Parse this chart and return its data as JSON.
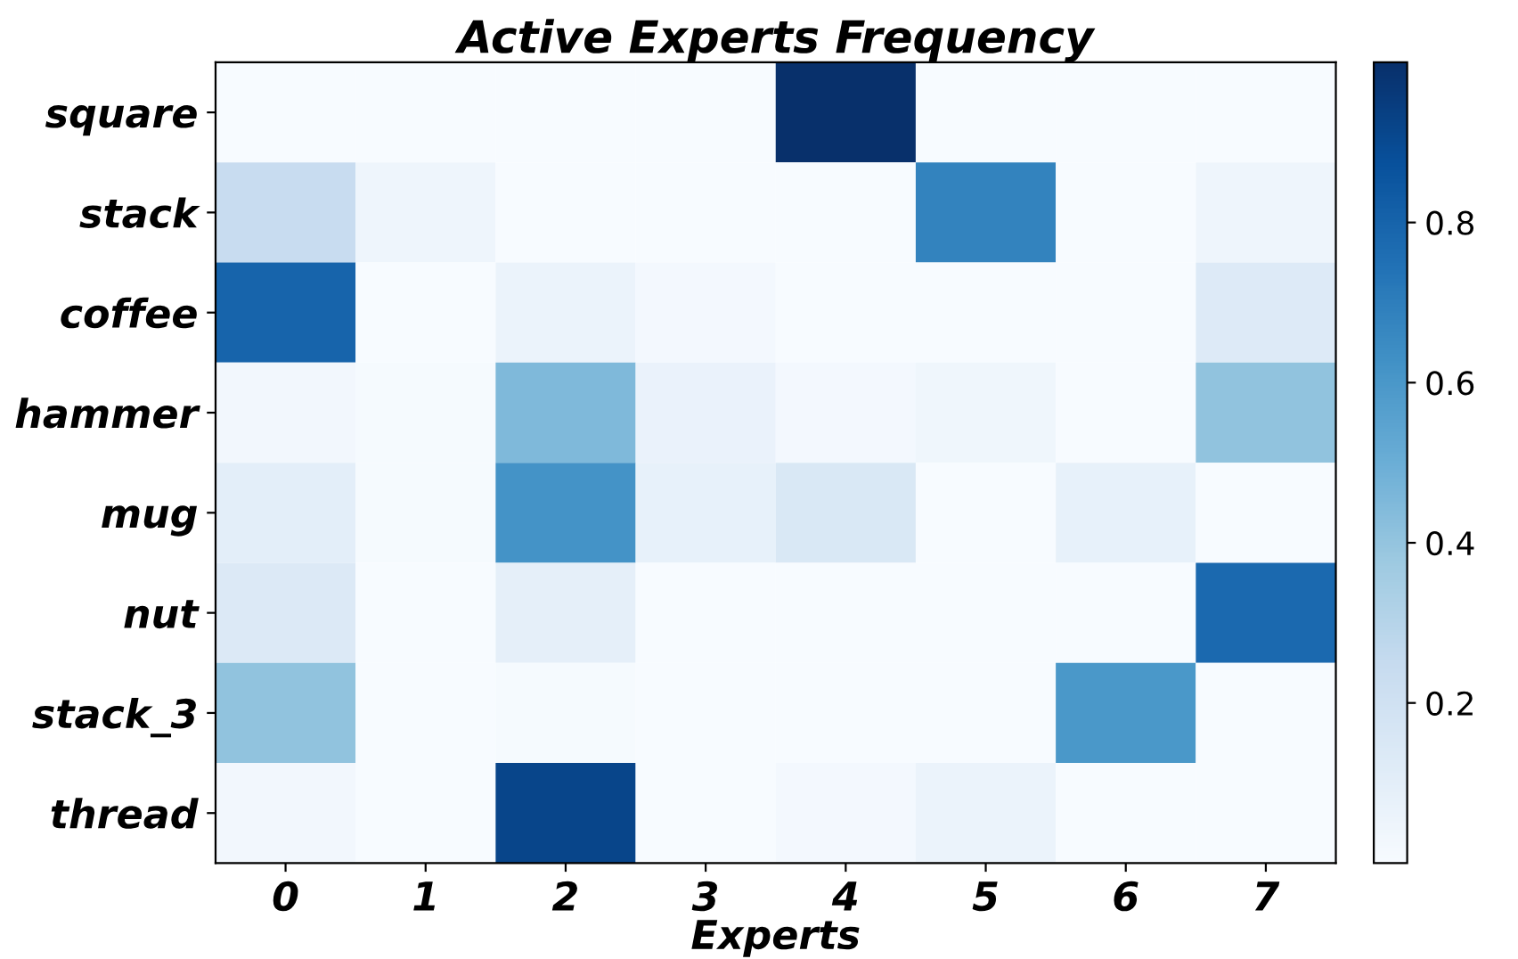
{
  "chart_data": {
    "type": "heatmap",
    "title": "Active Experts Frequency",
    "xlabel": "Experts",
    "categories": [
      "0",
      "1",
      "2",
      "3",
      "4",
      "5",
      "6",
      "7"
    ],
    "y_categories": [
      "square",
      "stack",
      "coffee",
      "hammer",
      "mug",
      "nut",
      "stack_3",
      "thread"
    ],
    "cells": [
      [
        0,
        0,
        0,
        0,
        1.0,
        0,
        0,
        0
      ],
      [
        0.24,
        0.05,
        0,
        0,
        0,
        0.68,
        0,
        0.05
      ],
      [
        0.8,
        0,
        0.06,
        0.02,
        0,
        0,
        0,
        0.13
      ],
      [
        0.03,
        0.01,
        0.45,
        0.07,
        0.02,
        0.04,
        0,
        0.41
      ],
      [
        0.1,
        0.01,
        0.62,
        0.08,
        0.15,
        0,
        0.08,
        0
      ],
      [
        0.14,
        0,
        0.09,
        0,
        0,
        0,
        0,
        0.78
      ],
      [
        0.41,
        0,
        0.01,
        0,
        0,
        0,
        0.6,
        0
      ],
      [
        0.03,
        0,
        0.92,
        0,
        0.02,
        0.06,
        0,
        0
      ]
    ],
    "clim": [
      0,
      1
    ],
    "cticks": [
      0.2,
      0.4,
      0.6,
      0.8
    ],
    "grid": false
  }
}
